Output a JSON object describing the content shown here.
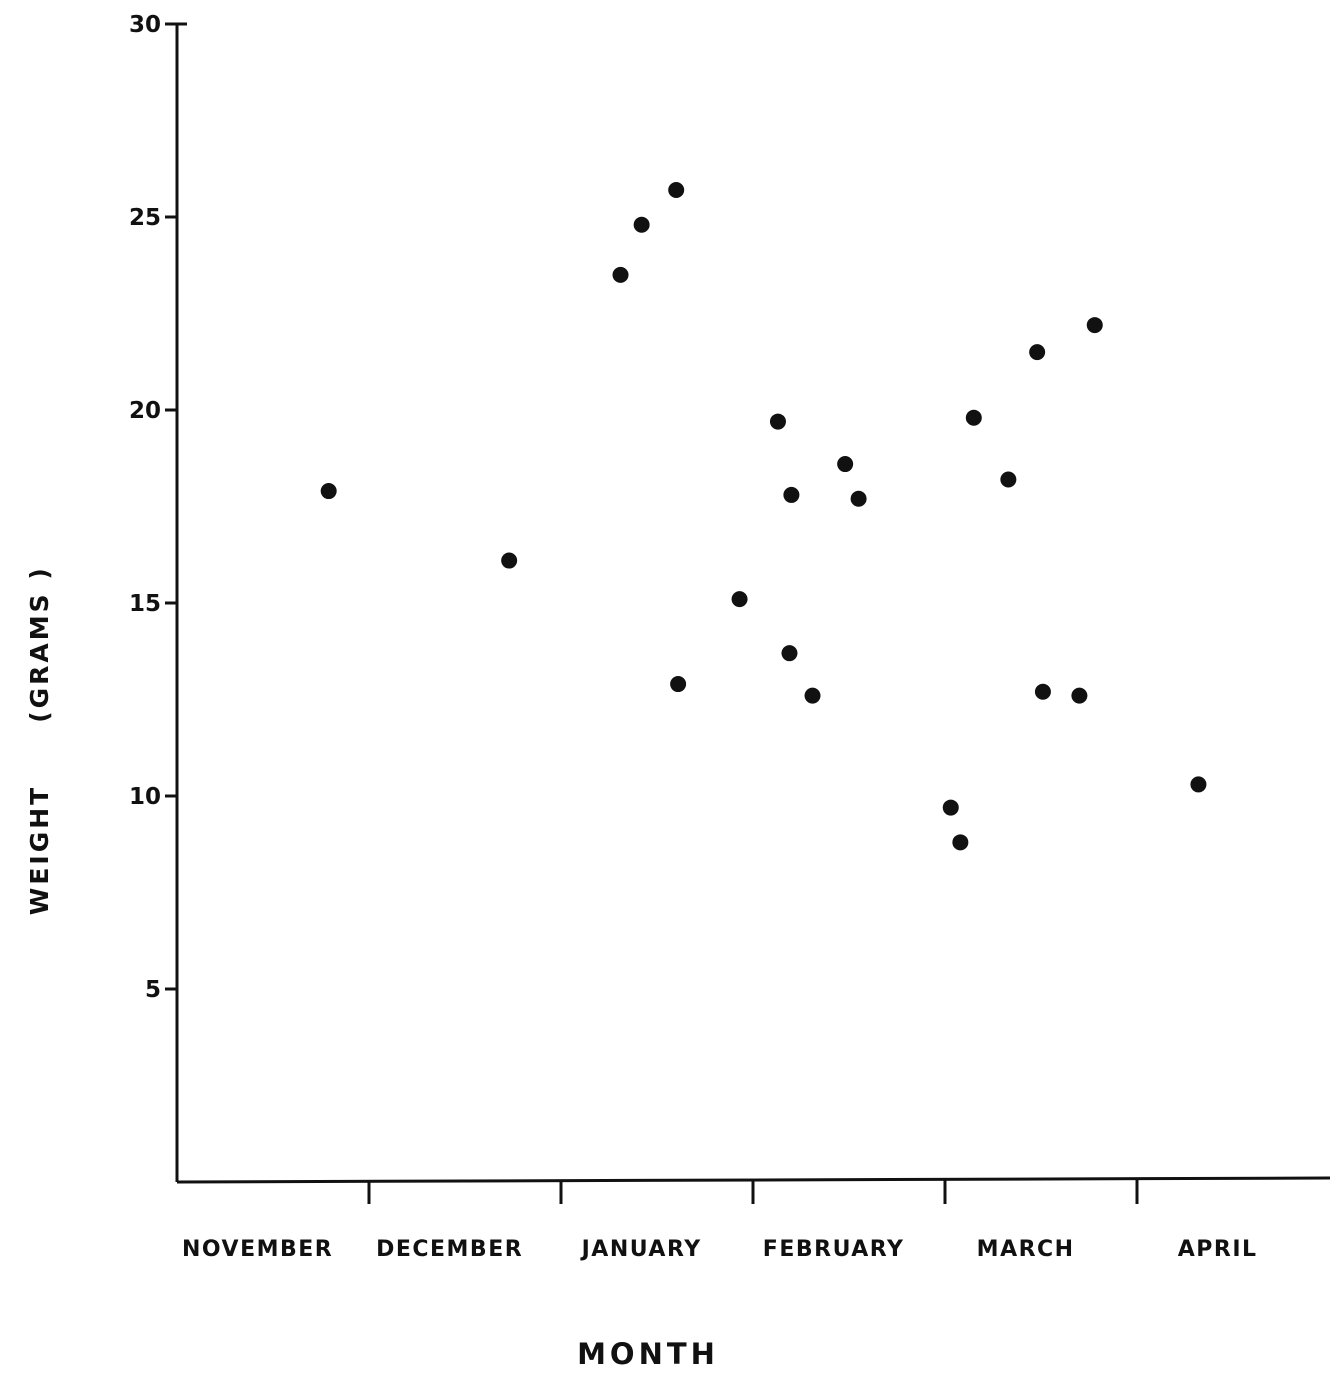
{
  "chart_data": {
    "type": "scatter",
    "title": "",
    "xlabel": "MONTH",
    "ylabel_parts": [
      "WEIGHT",
      "(GRAMS )"
    ],
    "categories": [
      "NOVEMBER",
      "DECEMBER",
      "JANUARY",
      "FEBRUARY",
      "MARCH",
      "APRIL"
    ],
    "x_unit": "month index (0 = start of November, 1 = start of December, ...)",
    "ylim": [
      0,
      30
    ],
    "yticks": [
      {
        "value": 5,
        "label": "5"
      },
      {
        "value": 10,
        "label": "10"
      },
      {
        "value": 15,
        "label": "15"
      },
      {
        "value": 20,
        "label": "20"
      },
      {
        "value": 25,
        "label": "25"
      },
      {
        "value": 30,
        "label": "30"
      }
    ],
    "xlim": [
      0,
      5.85
    ],
    "grid": false,
    "legend": "none",
    "marker_color": "#111111",
    "points": [
      {
        "x": 0.79,
        "y": 17.9
      },
      {
        "x": 1.73,
        "y": 16.1
      },
      {
        "x": 2.31,
        "y": 23.5
      },
      {
        "x": 2.42,
        "y": 24.8
      },
      {
        "x": 2.6,
        "y": 25.7
      },
      {
        "x": 2.61,
        "y": 12.9
      },
      {
        "x": 2.93,
        "y": 15.1
      },
      {
        "x": 3.13,
        "y": 19.7
      },
      {
        "x": 3.19,
        "y": 13.7
      },
      {
        "x": 3.2,
        "y": 17.8
      },
      {
        "x": 3.31,
        "y": 12.6
      },
      {
        "x": 3.48,
        "y": 18.6
      },
      {
        "x": 3.55,
        "y": 17.7
      },
      {
        "x": 4.03,
        "y": 9.7
      },
      {
        "x": 4.08,
        "y": 8.8
      },
      {
        "x": 4.15,
        "y": 19.8
      },
      {
        "x": 4.33,
        "y": 18.2
      },
      {
        "x": 4.48,
        "y": 21.5
      },
      {
        "x": 4.51,
        "y": 12.7
      },
      {
        "x": 4.7,
        "y": 12.6
      },
      {
        "x": 4.78,
        "y": 22.2
      },
      {
        "x": 5.32,
        "y": 10.3
      }
    ]
  }
}
